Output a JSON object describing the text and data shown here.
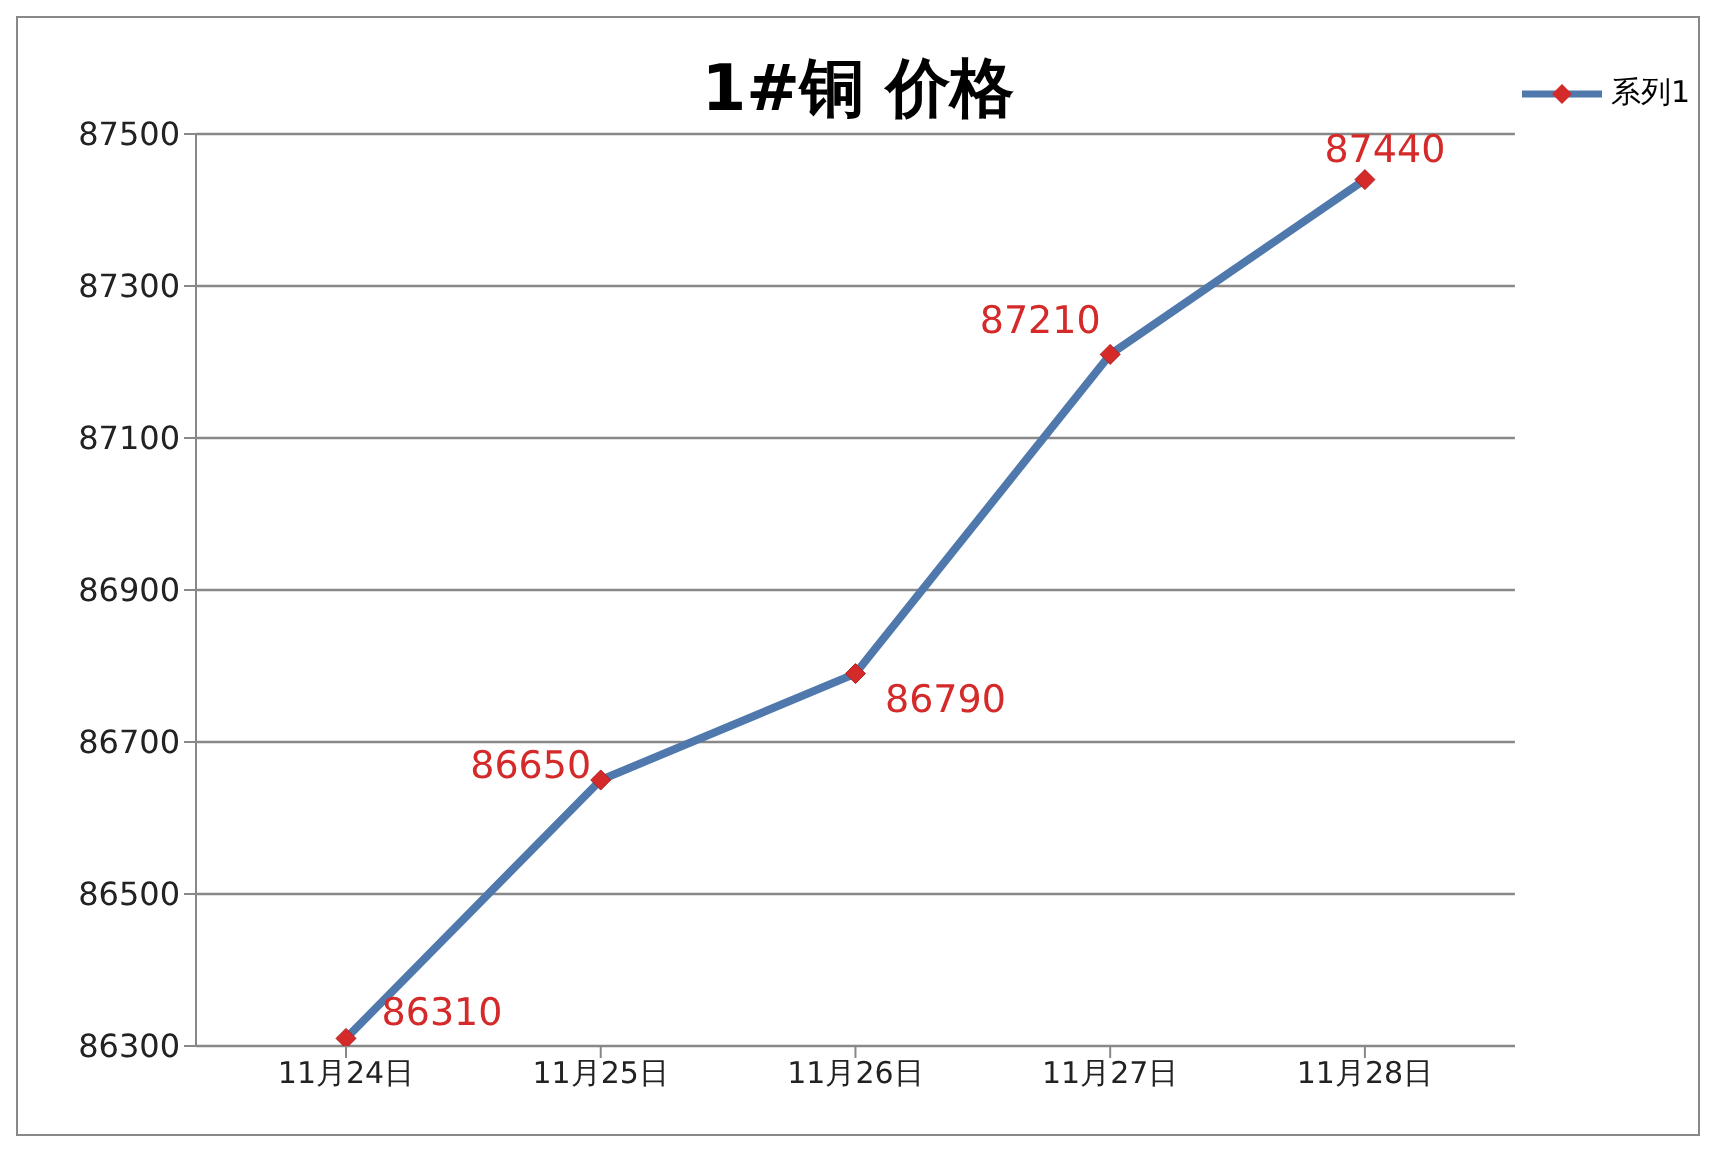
{
  "chart_data": {
    "type": "line",
    "title": "1#铜 价格",
    "categories": [
      "11月24日",
      "11月25日",
      "11月26日",
      "11月27日",
      "11月28日"
    ],
    "series": [
      {
        "name": "系列1",
        "color": "#4f79ad",
        "colors": [
          "#d42a2a",
          "#d42a2a",
          "#d42a2a",
          "#d42a2a",
          "#d42a2a"
        ],
        "values": [
          86310,
          86650,
          86790,
          87210,
          87440
        ]
      }
    ],
    "ylim": [
      86300,
      87500
    ],
    "yticks": [
      86300,
      86500,
      86700,
      86900,
      87100,
      87300,
      87500
    ],
    "grid": "y",
    "legend": "top right",
    "marker": "diamond",
    "data_labels": true
  }
}
